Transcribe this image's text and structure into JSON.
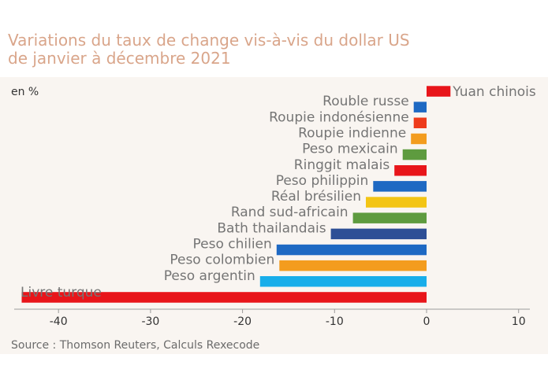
{
  "title": {
    "line1": "Variations du taux de change vis-à-vis du dollar US",
    "line2": "de janvier à décembre 2021"
  },
  "source": "Source :  Thomson Reuters, Calculs Rexecode",
  "colors": {
    "title": "#d9a58a",
    "panel_background": "#f9f5f1",
    "red": "#e8151a",
    "orange_red": "#ee3b1b",
    "orange": "#f39c1e",
    "green": "#5e9b3f",
    "blue": "#1e69c3",
    "yellow": "#f3c515",
    "navy": "#2d4f96",
    "light_blue": "#19aeea"
  },
  "chart_data": {
    "type": "bar",
    "orientation": "horizontal",
    "unit_label": "en %",
    "categories": [
      "Yuan chinois",
      "Rouble russe",
      "Roupie indonésienne",
      "Roupie indienne",
      "Peso mexicain",
      "Ringgit malais",
      "Peso philippin",
      "Réal brésilien",
      "Rand sud-africain",
      "Bath thailandais",
      "Peso chilien",
      "Peso colombien",
      "Peso argentin",
      "Livre turque"
    ],
    "values": [
      2.6,
      -1.4,
      -1.4,
      -1.7,
      -2.6,
      -3.5,
      -5.8,
      -6.6,
      -8.0,
      -10.4,
      -16.3,
      -16.0,
      -18.1,
      -44.0
    ],
    "bar_colors": [
      "#e8151a",
      "#1e69c3",
      "#ee3b1b",
      "#f39c1e",
      "#5e9b3f",
      "#e8151a",
      "#1e69c3",
      "#f3c515",
      "#5e9b3f",
      "#2d4f96",
      "#1e69c3",
      "#f39c1e",
      "#19aeea",
      "#e8151a"
    ],
    "xlim": [
      -46,
      10
    ],
    "xticks": [
      -40,
      -30,
      -20,
      -10,
      0,
      10
    ],
    "xtick_labels": [
      "-40",
      "-30",
      "-20",
      "-10",
      "0",
      "10"
    ],
    "grid": false
  }
}
